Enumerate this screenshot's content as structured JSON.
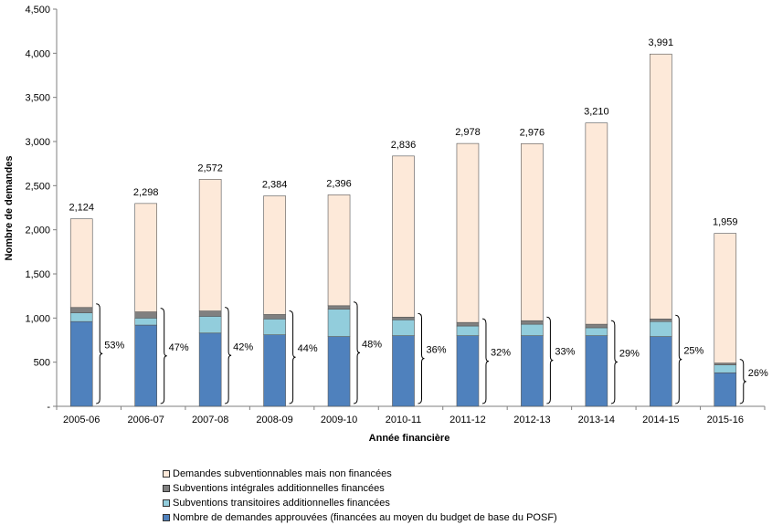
{
  "chart_data": {
    "type": "bar",
    "stacked": true,
    "title": "",
    "xlabel": "Année financière",
    "ylabel": "Nombre de demandes",
    "ylim": [
      0,
      4500
    ],
    "yticks": [
      0,
      500,
      1000,
      1500,
      2000,
      2500,
      3000,
      3500,
      4000,
      4500
    ],
    "ytick_labels": [
      "-",
      "500",
      "1,000",
      "1,500",
      "2,000",
      "2,500",
      "3,000",
      "3,500",
      "4,000",
      "4,500"
    ],
    "grid": false,
    "legend_position": "bottom",
    "categories": [
      "2005-06",
      "2006-07",
      "2007-08",
      "2008-09",
      "2009-10",
      "2010-11",
      "2011-12",
      "2012-13",
      "2013-14",
      "2014-15",
      "2015-16"
    ],
    "series": [
      {
        "name": "Nombre de demandes approuvées (financées au moyen du budget de base du POSF)",
        "color": "#4f81bd",
        "values": [
          960,
          920,
          830,
          810,
          790,
          800,
          800,
          800,
          800,
          790,
          380
        ]
      },
      {
        "name": "Subventions transitoires additionnelles financées",
        "color": "#92cddc",
        "values": [
          100,
          80,
          190,
          180,
          310,
          180,
          110,
          130,
          90,
          170,
          90
        ]
      },
      {
        "name": "Subventions intégrales additionnelles financées",
        "color": "#808080",
        "values": [
          60,
          70,
          60,
          50,
          40,
          30,
          40,
          40,
          40,
          30,
          20
        ]
      },
      {
        "name": "Demandes subventionnables mais non financées",
        "color": "#fde9d9",
        "values": [
          1004,
          1228,
          1492,
          1344,
          1256,
          1826,
          2028,
          2006,
          2280,
          3001,
          1469
        ]
      }
    ],
    "totals": [
      "2,124",
      "2,298",
      "2,572",
      "2,384",
      "2,396",
      "2,836",
      "2,978",
      "2,976",
      "3,210",
      "3,991",
      "1,959"
    ],
    "funded_percent": [
      "53%",
      "47%",
      "42%",
      "44%",
      "48%",
      "36%",
      "32%",
      "33%",
      "29%",
      "25%",
      "26%"
    ]
  }
}
